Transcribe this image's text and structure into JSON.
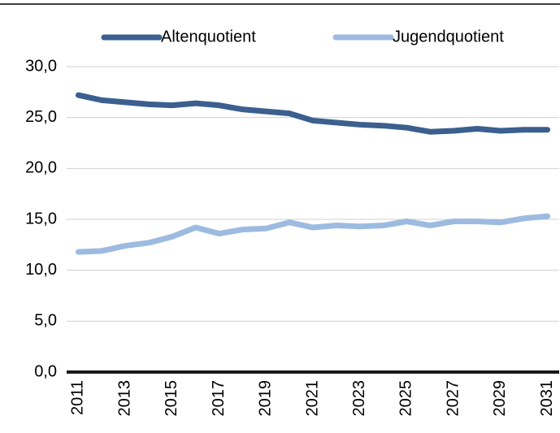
{
  "chart_data": {
    "type": "line",
    "categories": [
      "2011",
      null,
      "2013",
      null,
      "2015",
      null,
      "2017",
      null,
      "2019",
      null,
      "2021",
      null,
      "2023",
      null,
      "2025",
      null,
      "2027",
      null,
      "2029",
      null,
      "2031"
    ],
    "series": [
      {
        "name": "Altenquotient",
        "color": "#3b5f8f",
        "values": [
          27.2,
          26.7,
          26.5,
          26.3,
          26.2,
          26.4,
          26.2,
          25.8,
          25.6,
          25.4,
          24.7,
          24.5,
          24.3,
          24.2,
          24.0,
          23.6,
          23.7,
          23.9,
          23.7,
          23.8,
          23.8
        ]
      },
      {
        "name": "Jugendquotient",
        "color": "#9dbbe0",
        "values": [
          11.8,
          11.9,
          12.4,
          12.7,
          13.3,
          14.2,
          13.6,
          14.0,
          14.1,
          14.7,
          14.2,
          14.4,
          14.3,
          14.4,
          14.8,
          14.4,
          14.8,
          14.8,
          14.7,
          15.1,
          15.3
        ]
      }
    ],
    "ylim": [
      0,
      30
    ],
    "yticks": [
      {
        "value": 0,
        "label": "0,0"
      },
      {
        "value": 5,
        "label": "5,0"
      },
      {
        "value": 10,
        "label": "10,0"
      },
      {
        "value": 15,
        "label": "15,0"
      },
      {
        "value": 20,
        "label": "20,0"
      },
      {
        "value": 25,
        "label": "25,0"
      },
      {
        "value": 30,
        "label": "30,0"
      }
    ],
    "grid": true,
    "legend": "top"
  }
}
